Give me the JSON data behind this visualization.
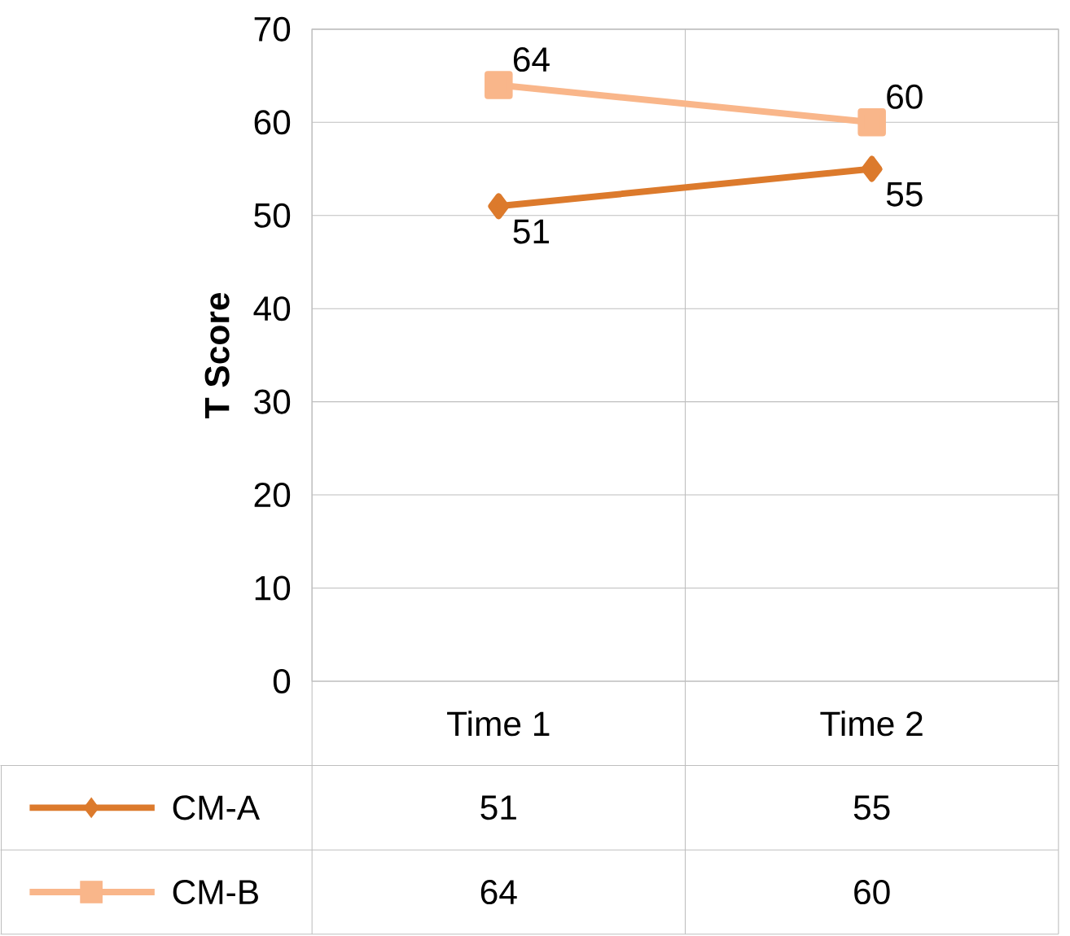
{
  "chart_data": {
    "type": "line",
    "ylabel": "T Score",
    "categories": [
      "Time 1",
      "Time 2"
    ],
    "series": [
      {
        "name": "CM-A",
        "color": "#dc7a2c",
        "marker": "diamond",
        "values": [
          51,
          55
        ],
        "value_labels": [
          "51",
          "55"
        ]
      },
      {
        "name": "CM-B",
        "color": "#f9b68a",
        "marker": "square",
        "values": [
          64,
          60
        ],
        "value_labels": [
          "64",
          "60"
        ]
      }
    ],
    "ylim": [
      0,
      70
    ],
    "yticks": [
      0,
      10,
      20,
      30,
      40,
      50,
      60,
      70
    ],
    "grid": true,
    "legend": "bottom"
  }
}
